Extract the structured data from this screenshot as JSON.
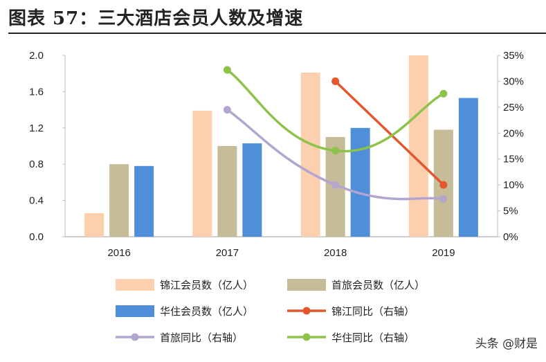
{
  "title": "图表 57：三大酒店会员人数及增速",
  "watermark": "头条 @财是",
  "chart_data": {
    "type": "bar",
    "categories": [
      "2016",
      "2017",
      "2018",
      "2019"
    ],
    "left_axis": {
      "ticks": [
        "0.0",
        "0.4",
        "0.8",
        "1.2",
        "1.6",
        "2.0"
      ],
      "range": [
        0,
        2.0
      ]
    },
    "right_axis": {
      "ticks": [
        "0%",
        "5%",
        "10%",
        "15%",
        "20%",
        "25%",
        "30%",
        "35%"
      ],
      "range": [
        0,
        35
      ]
    },
    "bar_series": [
      {
        "name": "锦江会员数（亿人）",
        "color": "#FCCFAF",
        "values": [
          0.26,
          1.39,
          1.81,
          2.0
        ]
      },
      {
        "name": "首旅会员数（亿人）",
        "color": "#C7BC98",
        "values": [
          0.8,
          1.0,
          1.1,
          1.18
        ]
      },
      {
        "name": "华住会员数（亿人）",
        "color": "#4F8ED9",
        "values": [
          0.78,
          1.03,
          1.2,
          1.53
        ]
      }
    ],
    "line_series": [
      {
        "name": "锦江同比（右轴）",
        "color": "#E4572E",
        "values": [
          null,
          null,
          30.0,
          10.0
        ]
      },
      {
        "name": "首旅同比（右轴）",
        "color": "#B2A6CF",
        "values": [
          null,
          24.5,
          10.0,
          7.3
        ]
      },
      {
        "name": "华住同比（右轴）",
        "color": "#8DC34A",
        "values": [
          null,
          32.2,
          16.6,
          27.6
        ]
      }
    ],
    "legend": [
      "锦江会员数（亿人）",
      "首旅会员数（亿人）",
      "华住会员数（亿人）",
      "锦江同比（右轴）",
      "首旅同比（右轴）",
      "华住同比（右轴）"
    ],
    "legend_position": "bottom",
    "grid": false
  }
}
